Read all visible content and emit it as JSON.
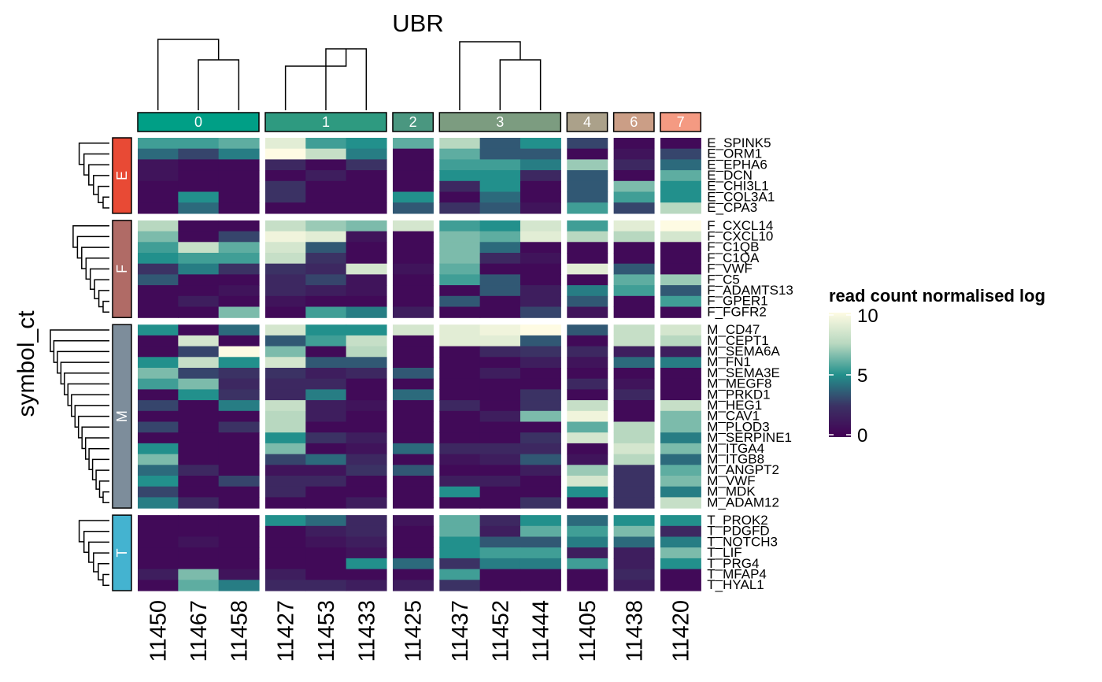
{
  "chart_data": {
    "type": "heatmap",
    "title": "UBR",
    "ylabel": "symbol_ct",
    "legend": {
      "title": "read count normalised log",
      "range": [
        0,
        10
      ],
      "ticks": [
        "0",
        "5",
        "10"
      ],
      "colors": [
        "#430055",
        "#3b3264",
        "#22908c",
        "#b8d8c0",
        "#fefbe3"
      ]
    },
    "column_groups": [
      {
        "label": "0",
        "color": "#009f86",
        "columns": [
          "11450",
          "11467",
          "11458"
        ]
      },
      {
        "label": "1",
        "color": "#2e9a80",
        "columns": [
          "11427",
          "11453",
          "11433"
        ]
      },
      {
        "label": "2",
        "color": "#4a9780",
        "columns": [
          "11425"
        ]
      },
      {
        "label": "3",
        "color": "#7c9c80",
        "columns": [
          "11437",
          "11452",
          "11444"
        ]
      },
      {
        "label": "4",
        "color": "#aba18a",
        "columns": [
          "11405"
        ]
      },
      {
        "label": "6",
        "color": "#cb9e86",
        "columns": [
          "11438"
        ]
      },
      {
        "label": "7",
        "color": "#f49a82",
        "columns": [
          "11420"
        ]
      }
    ],
    "row_groups": [
      {
        "label": "E",
        "color": "#e84a35",
        "rows": [
          "E_SPINK5",
          "E_ORM1",
          "E_EPHA6",
          "E_DCN",
          "E_CHI3L1",
          "E_COL3A1",
          "E_CPA3"
        ],
        "values": [
          [
            5.5,
            5.5,
            6.0,
            9.0,
            5.5,
            5.0,
            6.0,
            7.5,
            3.5,
            5.0,
            3.0,
            0.5,
            0.5
          ],
          [
            4.0,
            3.0,
            4.5,
            10.0,
            8.0,
            4.5,
            0.5,
            6.0,
            3.5,
            3.5,
            0.5,
            1.0,
            3.0
          ],
          [
            1.0,
            0.5,
            0.5,
            2.0,
            0.5,
            2.5,
            0.5,
            5.5,
            5.5,
            4.5,
            7.0,
            2.0,
            4.0
          ],
          [
            1.0,
            0.5,
            0.5,
            0.5,
            1.5,
            0.5,
            0.5,
            5.0,
            5.0,
            2.0,
            3.5,
            0.5,
            6.0
          ],
          [
            0.5,
            0.5,
            0.5,
            2.5,
            0.5,
            0.5,
            0.5,
            2.0,
            5.0,
            0.5,
            3.5,
            6.5,
            5.0
          ],
          [
            0.5,
            5.0,
            0.5,
            2.5,
            0.5,
            0.5,
            5.0,
            0.5,
            4.0,
            0.5,
            3.5,
            5.5,
            5.0
          ],
          [
            0.5,
            4.0,
            0.5,
            0.5,
            0.5,
            0.5,
            3.5,
            2.5,
            3.5,
            1.0,
            5.5,
            3.0,
            7.5
          ]
        ]
      },
      {
        "label": "F",
        "color": "#b06b66",
        "rows": [
          "F_CXCL14",
          "F_CXCL10",
          "F_C1QB",
          "F_C1QA",
          "F_VWF",
          "F_C5",
          "F_ADAMTS13",
          "F_GPER1",
          "F_FGFR2"
        ],
        "values": [
          [
            7.5,
            0.5,
            0.5,
            8.0,
            7.0,
            6.5,
            8.5,
            5.5,
            5.0,
            8.5,
            5.5,
            9.0,
            10.0
          ],
          [
            6.5,
            0.5,
            3.0,
            9.5,
            9.0,
            1.0,
            0.5,
            6.5,
            6.0,
            9.0,
            7.5,
            7.5,
            8.5
          ],
          [
            5.5,
            8.0,
            6.0,
            8.5,
            3.5,
            0.5,
            0.5,
            6.5,
            4.0,
            0.5,
            0.5,
            0.5,
            0.5
          ],
          [
            5.0,
            5.5,
            5.5,
            8.0,
            2.5,
            0.5,
            0.5,
            6.5,
            2.0,
            1.0,
            0.5,
            0.5,
            0.5
          ],
          [
            2.5,
            4.5,
            2.5,
            2.5,
            2.0,
            8.5,
            1.0,
            6.0,
            0.5,
            0.5,
            9.0,
            3.5,
            0.5
          ],
          [
            3.5,
            0.5,
            0.5,
            2.0,
            3.0,
            1.0,
            0.5,
            5.5,
            3.5,
            0.5,
            0.5,
            6.0,
            7.0
          ],
          [
            0.5,
            0.5,
            1.0,
            2.0,
            1.5,
            1.0,
            0.5,
            0.5,
            3.5,
            1.5,
            4.5,
            5.5,
            3.5
          ],
          [
            0.5,
            1.5,
            0.5,
            1.0,
            0.5,
            0.5,
            0.5,
            3.5,
            0.5,
            1.5,
            3.5,
            0.5,
            5.5
          ],
          [
            0.5,
            0.5,
            6.5,
            0.5,
            5.5,
            4.5,
            1.5,
            0.5,
            0.5,
            3.0,
            1.0,
            0.5,
            0.5
          ]
        ]
      },
      {
        "label": "M",
        "color": "#7d8d9b",
        "rows": [
          "M_CD47",
          "M_CEPT1",
          "M_SEMA6A",
          "M_FN1",
          "M_SEMA3E",
          "M_MEGF8",
          "M_PRKD1",
          "M_HEG1",
          "M_CAV1",
          "M_PLOD3",
          "M_SERPINE1",
          "M_ITGA4",
          "M_ITGB8",
          "M_ANGPT2",
          "M_VWF",
          "M_MDK",
          "M_ADAM12"
        ],
        "values": [
          [
            5.0,
            0.5,
            4.0,
            8.5,
            5.0,
            5.0,
            8.5,
            9.0,
            9.5,
            10.0,
            3.5,
            8.0,
            8.5
          ],
          [
            0.5,
            8.5,
            0.5,
            3.5,
            5.5,
            8.0,
            0.5,
            9.0,
            9.0,
            3.5,
            0.5,
            8.0,
            7.5
          ],
          [
            0.5,
            3.0,
            10.0,
            6.5,
            0.5,
            7.5,
            0.5,
            0.5,
            2.0,
            2.5,
            2.0,
            1.5,
            1.5
          ],
          [
            5.0,
            8.0,
            5.0,
            8.5,
            3.5,
            3.5,
            0.5,
            0.5,
            0.5,
            1.5,
            1.0,
            4.0,
            4.5
          ],
          [
            6.5,
            3.0,
            2.5,
            2.5,
            1.5,
            2.0,
            3.5,
            0.5,
            1.5,
            0.5,
            0.5,
            0.5,
            0.5
          ],
          [
            5.5,
            6.5,
            2.0,
            2.0,
            2.0,
            0.5,
            0.5,
            0.5,
            0.5,
            0.5,
            2.0,
            1.0,
            0.5
          ],
          [
            0.5,
            5.0,
            2.5,
            2.0,
            4.5,
            0.5,
            4.0,
            0.5,
            0.5,
            2.5,
            0.5,
            2.0,
            0.5
          ],
          [
            3.0,
            0.5,
            4.5,
            8.0,
            1.5,
            1.0,
            0.5,
            2.0,
            0.5,
            2.5,
            8.0,
            0.5,
            8.0
          ],
          [
            0.5,
            0.5,
            0.5,
            7.5,
            1.5,
            0.5,
            0.5,
            0.5,
            1.5,
            6.5,
            9.5,
            0.5,
            6.5
          ],
          [
            3.0,
            0.5,
            2.5,
            7.5,
            0.5,
            0.5,
            0.5,
            0.5,
            0.5,
            0.5,
            6.0,
            7.5,
            6.5
          ],
          [
            0.5,
            0.5,
            0.5,
            5.0,
            2.5,
            1.5,
            0.5,
            0.5,
            0.5,
            2.5,
            8.5,
            7.5,
            4.5
          ],
          [
            5.0,
            0.5,
            0.5,
            6.5,
            0.5,
            1.0,
            4.0,
            2.0,
            2.0,
            2.0,
            0.5,
            8.5,
            6.5
          ],
          [
            6.5,
            0.5,
            0.5,
            3.0,
            4.0,
            2.0,
            0.5,
            1.0,
            1.5,
            3.5,
            1.0,
            7.5,
            4.0
          ],
          [
            4.0,
            2.0,
            0.5,
            1.0,
            1.0,
            2.5,
            3.5,
            0.5,
            0.5,
            1.5,
            7.0,
            2.5,
            6.0
          ],
          [
            5.0,
            0.5,
            3.0,
            2.0,
            2.0,
            0.5,
            0.5,
            1.5,
            1.5,
            0.5,
            8.5,
            2.5,
            6.5
          ],
          [
            3.0,
            0.5,
            0.5,
            2.0,
            0.5,
            0.5,
            0.5,
            5.0,
            0.5,
            0.5,
            5.0,
            2.5,
            4.5
          ],
          [
            4.5,
            2.0,
            0.5,
            0.5,
            0.5,
            1.5,
            0.5,
            0.5,
            0.5,
            2.5,
            0.5,
            2.5,
            8.0
          ]
        ]
      },
      {
        "label": "T",
        "color": "#44b3d0",
        "rows": [
          "T_PROK2",
          "T_PDGFD",
          "T_NOTCH3",
          "T_LIF",
          "T_PRG4",
          "T_MFAP4",
          "T_HYAL1"
        ],
        "values": [
          [
            0.5,
            0.5,
            0.5,
            5.0,
            4.0,
            2.0,
            1.0,
            6.0,
            2.0,
            5.0,
            4.0,
            5.0,
            5.0
          ],
          [
            0.5,
            0.5,
            0.5,
            0.5,
            1.5,
            2.0,
            0.5,
            6.0,
            1.5,
            6.0,
            5.5,
            6.5,
            2.0
          ],
          [
            0.5,
            1.0,
            0.5,
            0.5,
            1.0,
            1.5,
            0.5,
            5.0,
            3.5,
            3.5,
            4.5,
            4.0,
            4.5
          ],
          [
            0.5,
            0.5,
            0.5,
            0.5,
            0.5,
            1.0,
            0.5,
            5.0,
            5.5,
            5.5,
            1.5,
            1.5,
            6.5
          ],
          [
            0.5,
            0.5,
            0.5,
            0.5,
            0.5,
            5.0,
            4.0,
            2.5,
            4.5,
            4.5,
            5.5,
            1.5,
            5.0
          ],
          [
            1.5,
            6.5,
            1.0,
            1.5,
            0.5,
            0.5,
            0.5,
            5.5,
            0.5,
            0.5,
            0.5,
            2.0,
            0.5
          ],
          [
            0.5,
            6.0,
            4.5,
            2.0,
            2.0,
            1.5,
            1.5,
            2.5,
            0.5,
            0.5,
            0.5,
            1.5,
            0.5
          ]
        ]
      }
    ]
  }
}
